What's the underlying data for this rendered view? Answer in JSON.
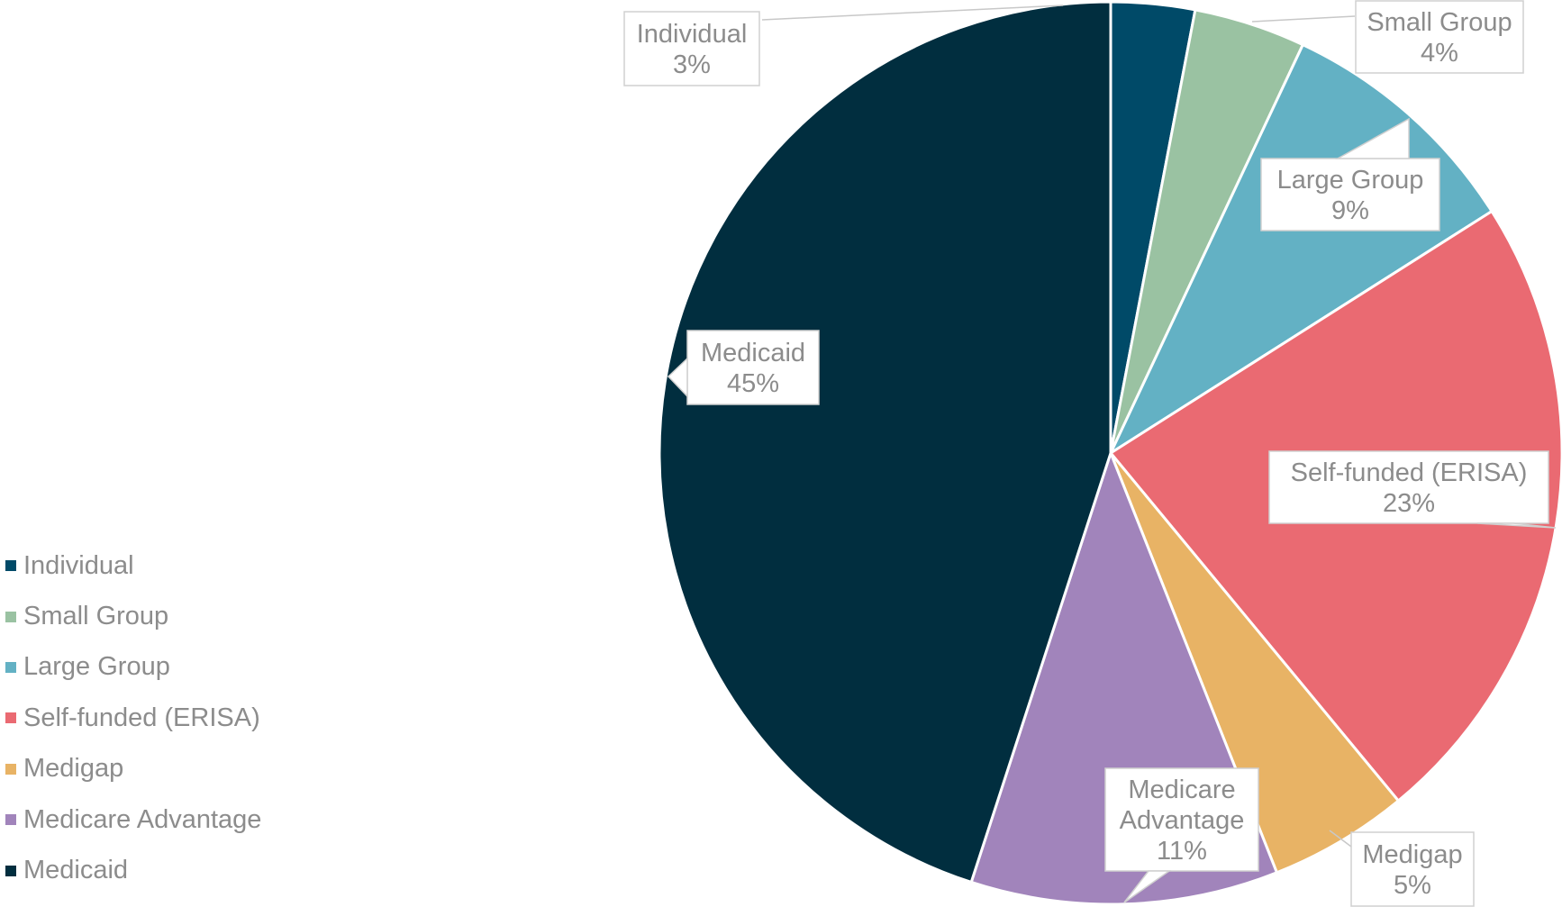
{
  "chart_data": {
    "type": "pie",
    "title": "",
    "legend_position": "left",
    "slices": [
      {
        "label": "Individual",
        "value": 3,
        "label_text": "3%",
        "color": "#004a68"
      },
      {
        "label": "Small Group",
        "value": 4,
        "label_text": "4%",
        "color": "#9ac2a2"
      },
      {
        "label": "Large Group",
        "value": 9,
        "label_text": "9%",
        "color": "#63b1c4"
      },
      {
        "label": "Self-funded (ERISA)",
        "value": 23,
        "label_text": "23%",
        "color": "#ea6a72"
      },
      {
        "label": "Medigap",
        "value": 5,
        "label_text": "5%",
        "color": "#e8b365"
      },
      {
        "label": "Medicare Advantage",
        "value": 11,
        "label_text": "11%",
        "color": "#a184bb"
      },
      {
        "label": "Medicaid",
        "value": 45,
        "label_text": "45%",
        "color": "#012e3f"
      }
    ]
  }
}
